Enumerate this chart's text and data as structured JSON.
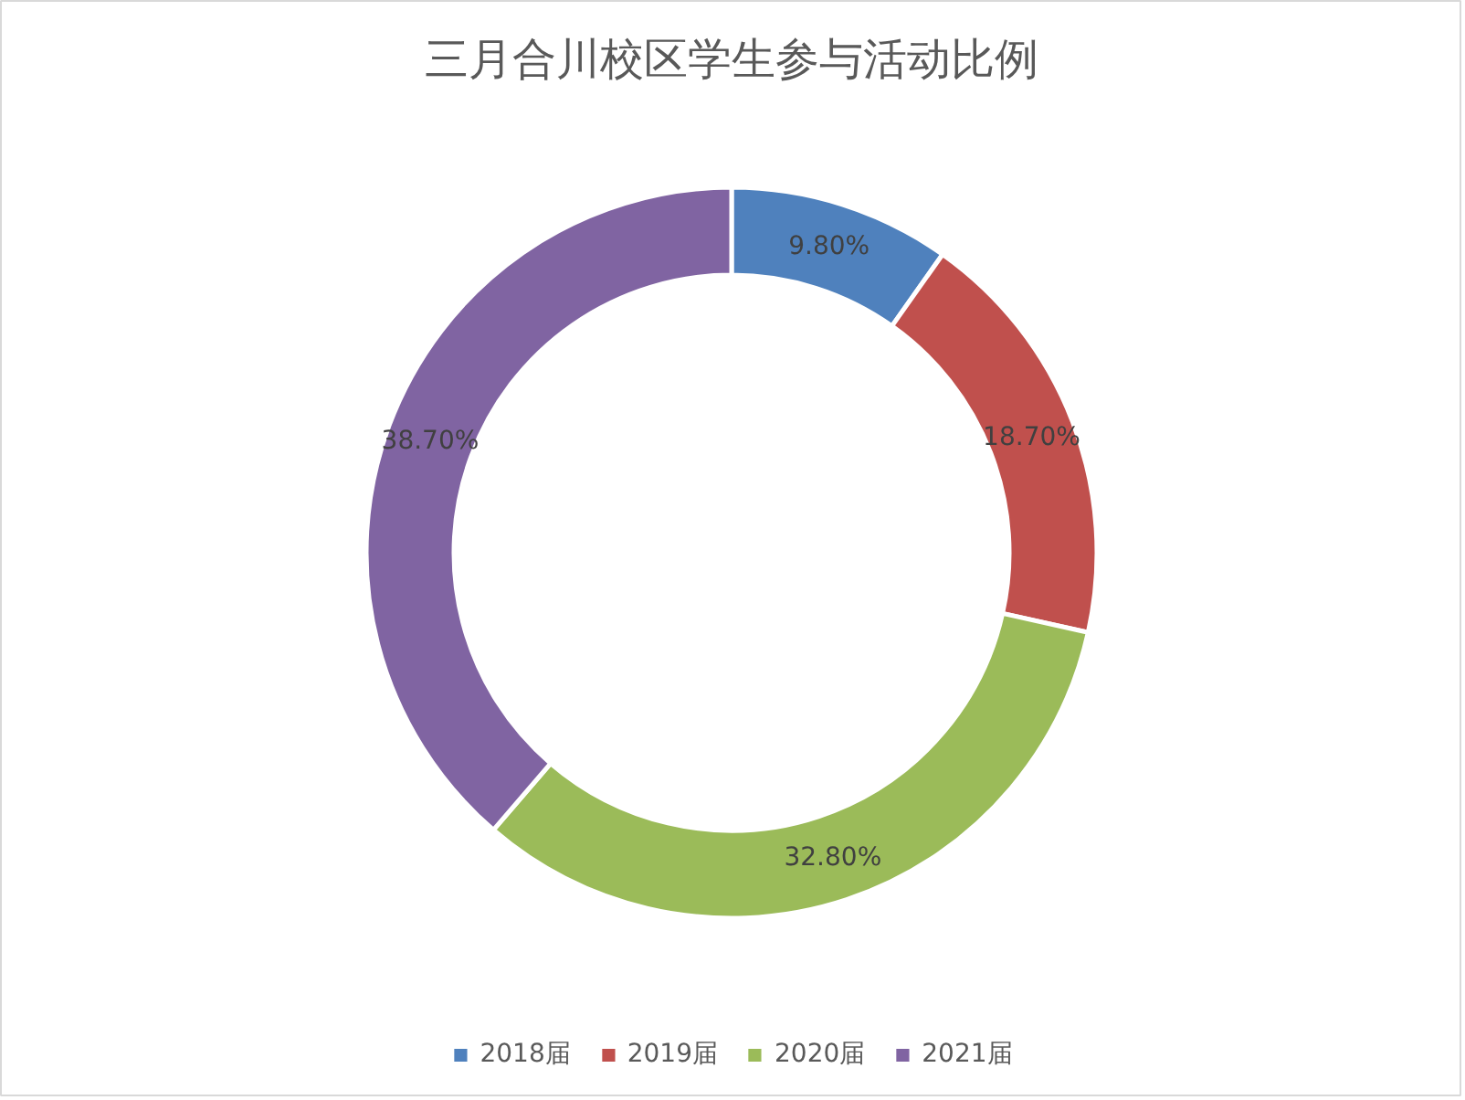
{
  "chart_data": {
    "type": "donut",
    "title": "三月合川校区学生参与活动比例",
    "categories": [
      "2018届",
      "2019届",
      "2020届",
      "2021届"
    ],
    "values": [
      9.8,
      18.7,
      32.8,
      38.7
    ],
    "value_labels": [
      "9.80%",
      "18.70%",
      "32.80%",
      "38.70%"
    ],
    "colors": [
      "#4f81bd",
      "#c0504d",
      "#9bbb59",
      "#8064a2"
    ],
    "legend": "bottom"
  }
}
